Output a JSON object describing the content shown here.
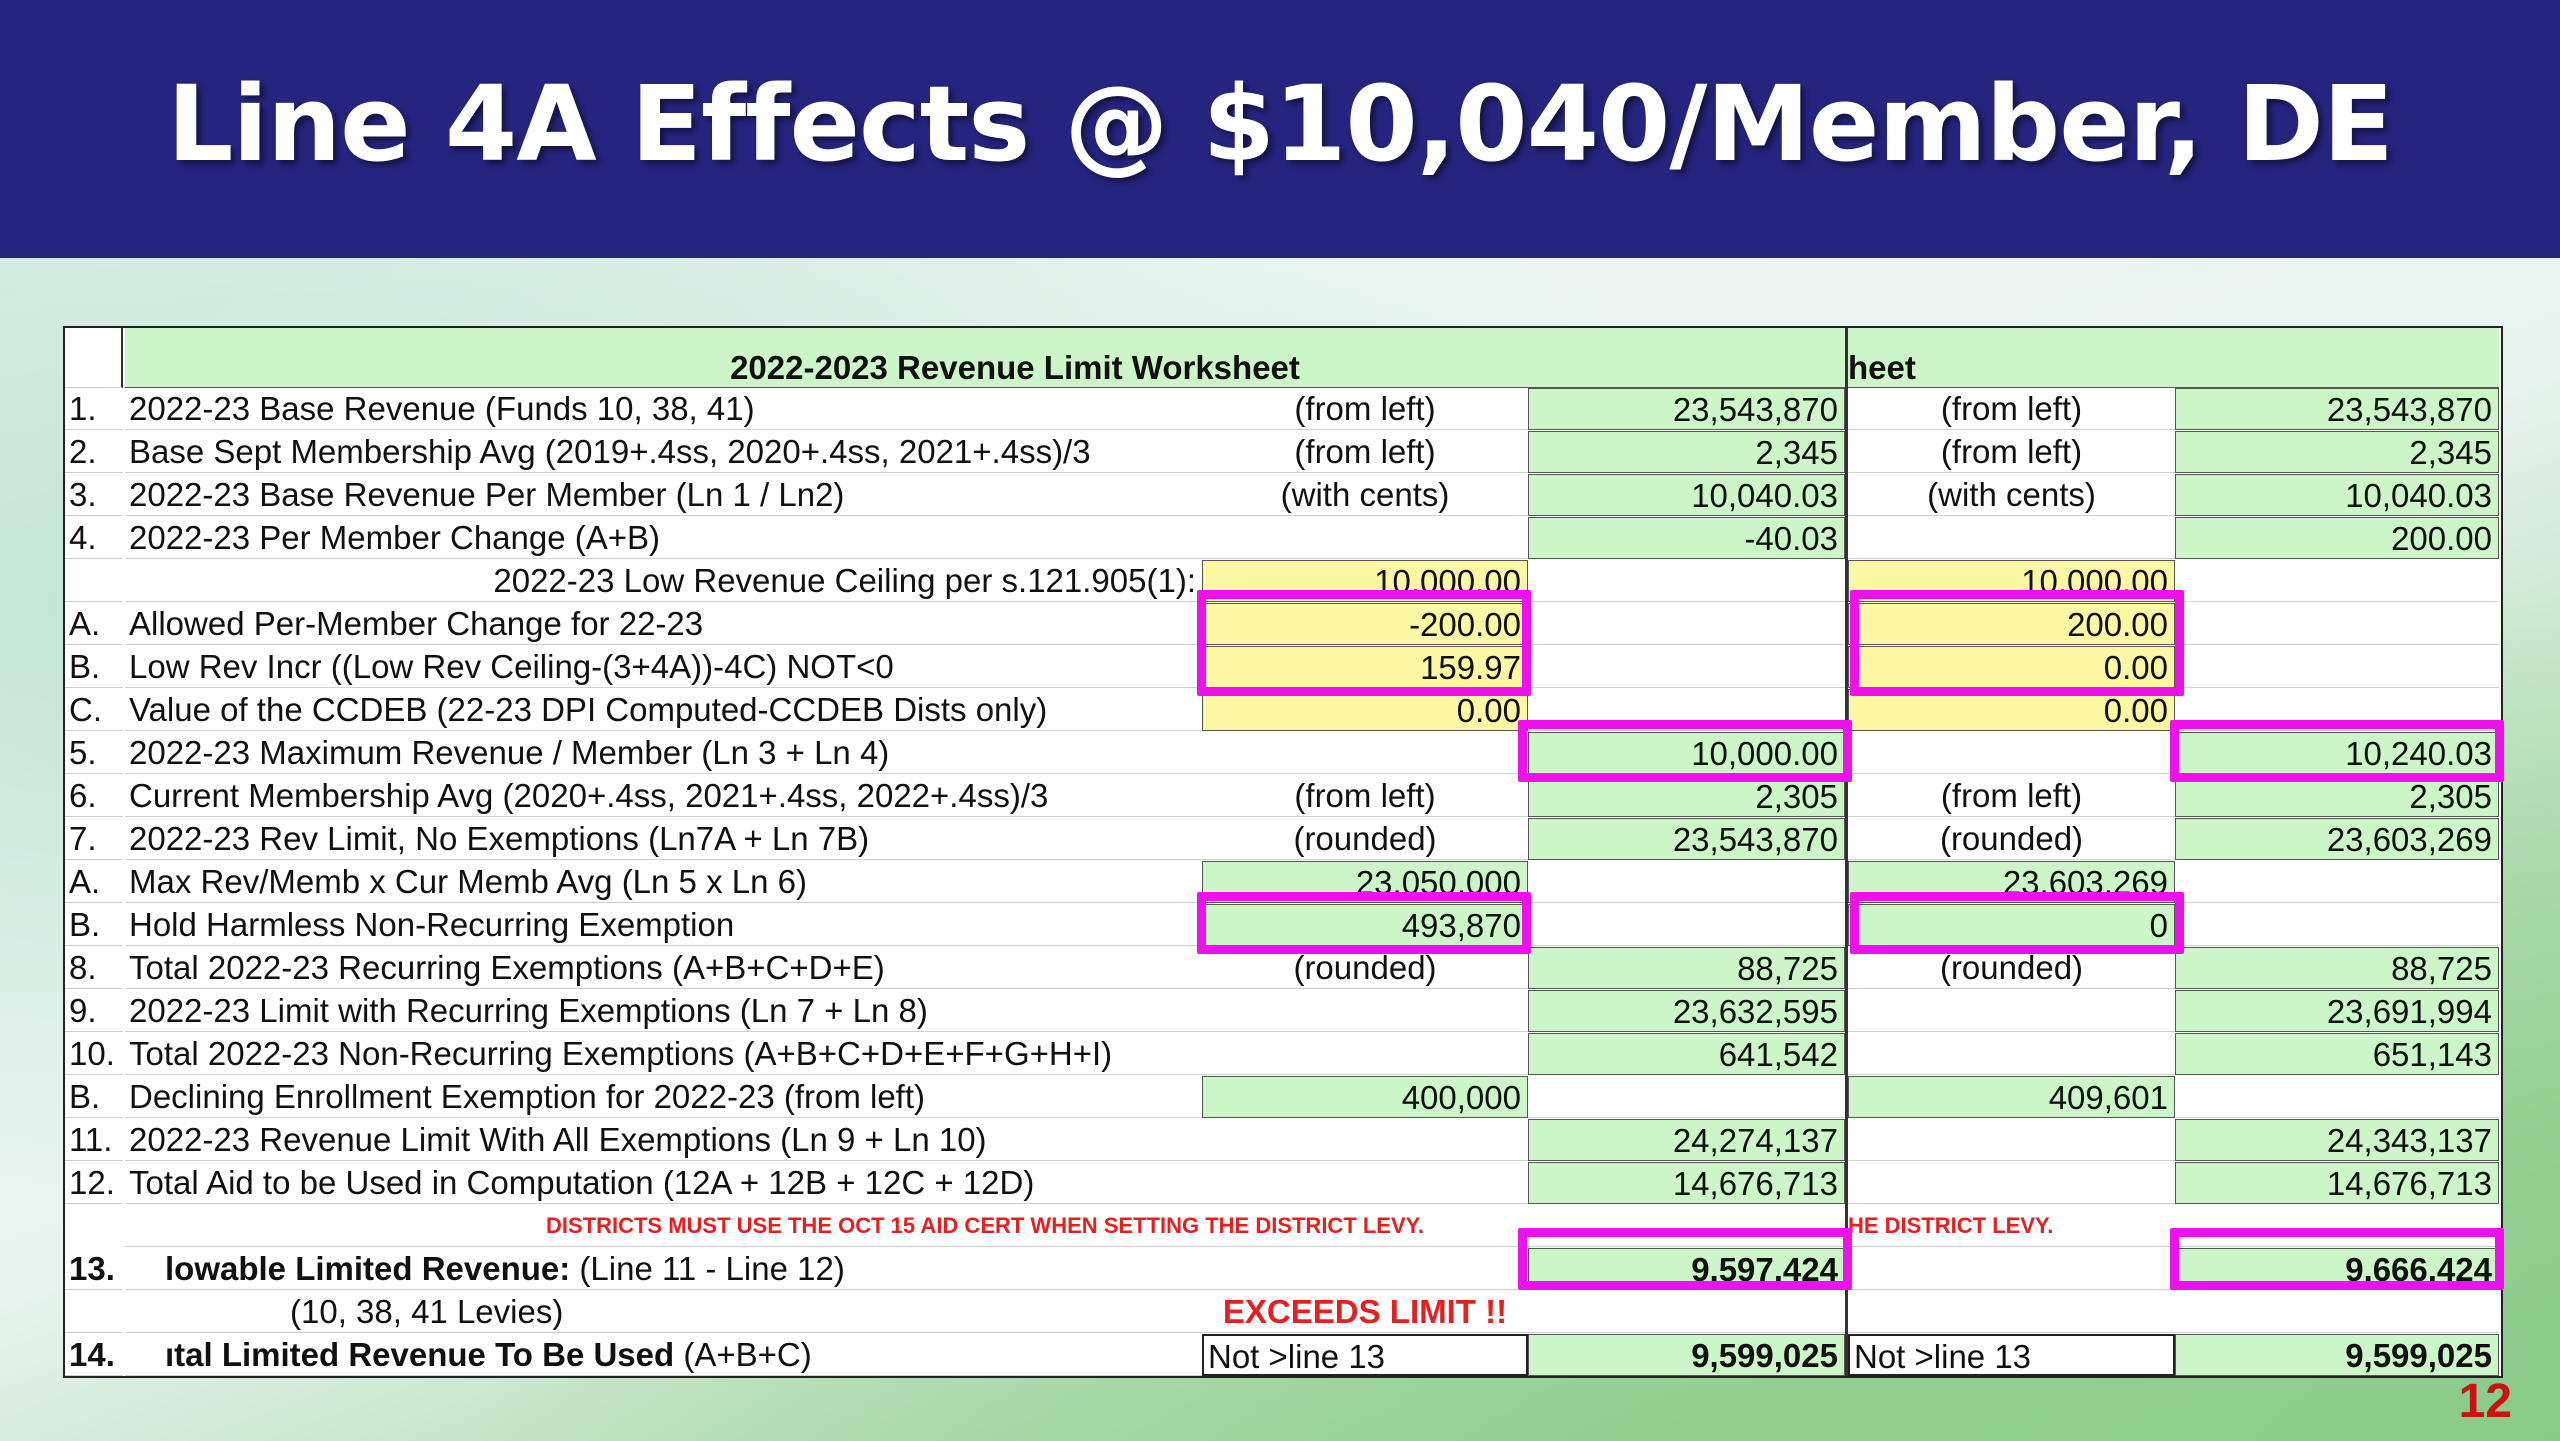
{
  "title": "Line 4A Effects @ $10,040/Member, DE",
  "slide_number": "12",
  "header_left": "2022-2023 Revenue Limit Worksheet",
  "header_right": "heet",
  "rows": [
    {
      "n": "1.",
      "label": "2022-23 Base Revenue (Funds 10, 38, 41)",
      "cA": "(from left)",
      "cB": "23,543,870",
      "cC": "(from left)",
      "cD": "23,543,870"
    },
    {
      "n": "2.",
      "label": "Base Sept Membership Avg  (2019+.4ss, 2020+.4ss, 2021+.4ss)/3",
      "cA": "(from left)",
      "cB": "2,345",
      "cC": "(from left)",
      "cD": "2,345"
    },
    {
      "n": "3.",
      "label": "2022-23 Base Revenue Per Member (Ln 1 / Ln2)",
      "cA": "(with cents)",
      "cB": "10,040.03",
      "cC": "(with cents)",
      "cD": "10,040.03"
    },
    {
      "n": "4.",
      "label": "2022-23 Per Member Change   (A+B)",
      "cA": "",
      "cB": "-40.03",
      "cC": "",
      "cD": "200.00"
    },
    {
      "n": "",
      "label": "2022-23 Low Revenue Ceiling per s.121.905(1):",
      "cA": "10,000.00",
      "cB": "",
      "cC": "10,000.00",
      "cD": ""
    },
    {
      "n": "A.",
      "label": "Allowed Per-Member Change for 22-23",
      "cA": "-200.00",
      "cB": "",
      "cC": "200.00",
      "cD": ""
    },
    {
      "n": "B.",
      "label": "Low Rev Incr ((Low Rev Ceiling-(3+4A))-4C) NOT<0",
      "cA": "159.97",
      "cB": "",
      "cC": "0.00",
      "cD": ""
    },
    {
      "n": "C.",
      "label": "Value of the CCDEB (22-23 DPI Computed-CCDEB Dists only)",
      "cA": "0.00",
      "cB": "",
      "cC": "0.00",
      "cD": ""
    },
    {
      "n": "5.",
      "label": "2022-23 Maximum Revenue / Member (Ln 3 + Ln 4)",
      "cA": "",
      "cB": "10,000.00",
      "cC": "",
      "cD": "10,240.03"
    },
    {
      "n": "6.",
      "label": "Current Membership Avg  (2020+.4ss, 2021+.4ss, 2022+.4ss)/3",
      "cA": "(from left)",
      "cB": "2,305",
      "cC": "(from left)",
      "cD": "2,305"
    },
    {
      "n": "7.",
      "label": "2022-23 Rev Limit, No Exemptions (Ln7A + Ln 7B)",
      "cA": "(rounded)",
      "cB": "23,543,870",
      "cC": "(rounded)",
      "cD": "23,603,269"
    },
    {
      "n": "A.",
      "label": "Max Rev/Memb x Cur Memb Avg (Ln 5 x Ln 6)",
      "cA": "23,050,000",
      "cB": "",
      "cC": "23,603,269",
      "cD": ""
    },
    {
      "n": "B.",
      "label": "Hold Harmless Non-Recurring Exemption",
      "cA": "493,870",
      "cB": "",
      "cC": "0",
      "cD": ""
    },
    {
      "n": "8.",
      "label": "Total 2022-23 Recurring Exemptions  (A+B+C+D+E)",
      "cA": "(rounded)",
      "cB": "88,725",
      "cC": "(rounded)",
      "cD": "88,725"
    },
    {
      "n": "9.",
      "label": "2022-23 Limit with Recurring Exemptions   (Ln 7 + Ln 8)",
      "cA": "",
      "cB": "23,632,595",
      "cC": "",
      "cD": "23,691,994"
    },
    {
      "n": "10.",
      "label": "Total 2022-23 Non-Recurring Exemptions  (A+B+C+D+E+F+G+H+I)",
      "cA": "",
      "cB": "641,542",
      "cC": "",
      "cD": "651,143"
    },
    {
      "n": "B.",
      "label": "Declining Enrollment Exemption for 2022-23 (from left)",
      "cA": "400,000",
      "cB": "",
      "cC": "409,601",
      "cD": ""
    },
    {
      "n": "11.",
      "label": "2022-23 Revenue Limit With All Exemptions    (Ln 9 + Ln 10)",
      "cA": "",
      "cB": "24,274,137",
      "cC": "",
      "cD": "24,343,137"
    },
    {
      "n": "12.",
      "label": "Total Aid to be Used in Computation (12A + 12B + 12C + 12D)",
      "cA": "",
      "cB": "14,676,713",
      "cC": "",
      "cD": "14,676,713"
    }
  ],
  "notice_left": "DISTRICTS MUST USE THE OCT 15 AID CERT WHEN SETTING THE DISTRICT LEVY.",
  "notice_right": "HE DISTRICT LEVY.",
  "row13": {
    "n": "13.",
    "label_bold": "lowable Limited Revenue:",
    "label_rest": " (Line 11 - Line 12)",
    "cB": "9,597,424",
    "cD": "9,666,424"
  },
  "row13b": {
    "label": "(10, 38, 41 Levies)",
    "cA": "EXCEEDS LIMIT !!"
  },
  "row14": {
    "n": "14.",
    "label_bold": "ıtal Limited Revenue To Be Used",
    "label_rest": " (A+B+C)",
    "cA": "Not >line 13",
    "cB": "9,599,025",
    "cC": "Not >line 13",
    "cD": "9,599,025"
  }
}
